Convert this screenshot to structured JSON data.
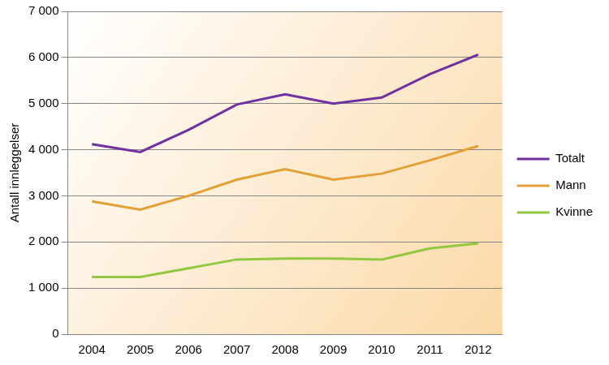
{
  "chart_data": {
    "type": "line",
    "y_label": "Antall innleggelser",
    "categories": [
      "2004",
      "2005",
      "2006",
      "2007",
      "2008",
      "2009",
      "2010",
      "2011",
      "2012"
    ],
    "series": [
      {
        "name": "Totalt",
        "color": "#7030a0",
        "values": [
          4120,
          3950,
          4430,
          4980,
          5200,
          5000,
          5130,
          5640,
          6060
        ]
      },
      {
        "name": "Mann",
        "color": "#e3a035",
        "values": [
          2880,
          2700,
          3000,
          3350,
          3580,
          3350,
          3480,
          3770,
          4080
        ]
      },
      {
        "name": "Kvinne",
        "color": "#92c83e",
        "values": [
          1240,
          1240,
          1430,
          1620,
          1640,
          1640,
          1620,
          1860,
          1970
        ]
      }
    ],
    "ylim": [
      0,
      7000
    ],
    "yticks": [
      0,
      {
        "value": 1000,
        "label": "1 000"
      },
      {
        "value": 2000,
        "label": "2 000"
      },
      {
        "value": 3000,
        "label": "3 000"
      },
      {
        "value": 4000,
        "label": "4 000"
      },
      {
        "value": 5000,
        "label": "5 000"
      },
      {
        "value": 6000,
        "label": "6 000"
      },
      {
        "value": 7000,
        "label": "7 000"
      }
    ],
    "grid": true,
    "legend": "right"
  }
}
